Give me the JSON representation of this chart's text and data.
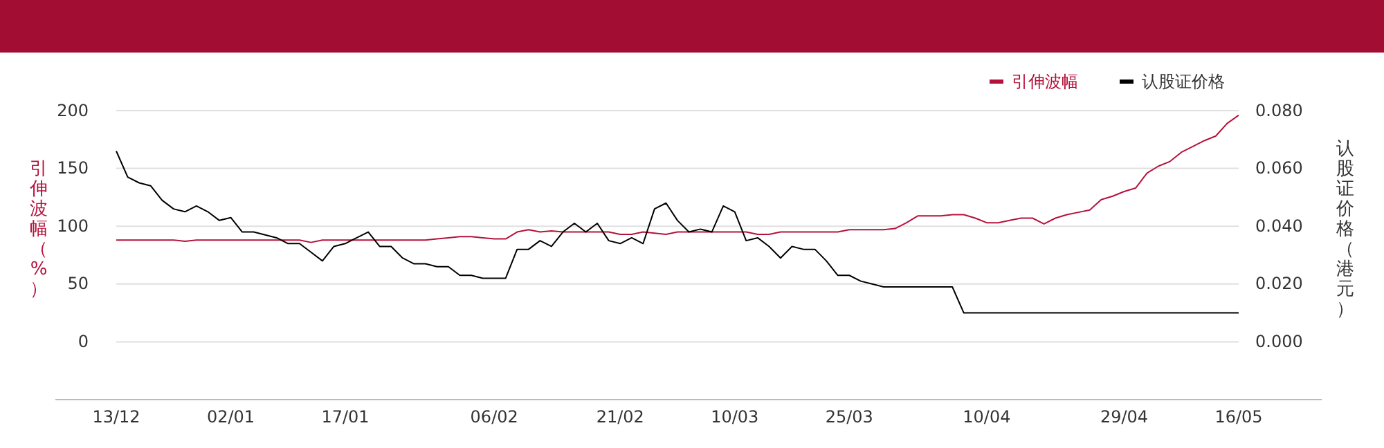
{
  "chart_data": {
    "type": "line",
    "categories": [
      "13/12",
      null,
      null,
      null,
      null,
      null,
      null,
      null,
      null,
      null,
      "02/01",
      null,
      null,
      null,
      null,
      null,
      null,
      null,
      null,
      null,
      "17/01",
      null,
      null,
      null,
      null,
      null,
      null,
      null,
      null,
      null,
      null,
      null,
      null,
      "06/02",
      null,
      null,
      null,
      null,
      null,
      null,
      null,
      null,
      null,
      null,
      "21/02",
      null,
      null,
      null,
      null,
      null,
      null,
      null,
      null,
      null,
      "10/03",
      null,
      null,
      null,
      null,
      null,
      null,
      null,
      null,
      null,
      "25/03",
      null,
      null,
      null,
      null,
      null,
      null,
      null,
      null,
      null,
      null,
      null,
      "10/04",
      null,
      null,
      null,
      null,
      null,
      null,
      null,
      null,
      null,
      null,
      null,
      "29/04",
      null,
      null,
      null,
      null,
      null,
      null,
      null,
      null,
      null,
      "16/05"
    ],
    "ylabel": "引伸波幅（%）",
    "y2label": "认股证价格（港元）",
    "ylim": [
      -50,
      200
    ],
    "yticks": [
      0,
      50,
      100,
      150,
      200
    ],
    "y2lim": [
      -0.02,
      0.08
    ],
    "y2ticks": [
      {
        "value": 0,
        "label": "0.000"
      },
      {
        "value": 0.02,
        "label": "0.020"
      },
      {
        "value": 0.04,
        "label": "0.040"
      },
      {
        "value": 0.06,
        "label": "0.060"
      },
      {
        "value": 0.08,
        "label": "0.080"
      }
    ],
    "grid": "y",
    "legend": "top right",
    "marker": "none",
    "line_style": "solid",
    "series": [
      {
        "name": "引伸波幅",
        "color": "#b5123b",
        "values": [
          88,
          88,
          88,
          88,
          88,
          88,
          87,
          88,
          88,
          88,
          88,
          88,
          88,
          88,
          88,
          88,
          88,
          86,
          88,
          88,
          88,
          88,
          88,
          88,
          88,
          88,
          88,
          88,
          89,
          90,
          91,
          91,
          90,
          89,
          89,
          95,
          97,
          95,
          96,
          95,
          95,
          95,
          95,
          95,
          93,
          93,
          95,
          94,
          93,
          95,
          95,
          95,
          95,
          95,
          95,
          95,
          93,
          93,
          95,
          95,
          95,
          95,
          95,
          95,
          97,
          97,
          97,
          97,
          98,
          103,
          109,
          109,
          109,
          110,
          110,
          107,
          103,
          103,
          105,
          107,
          107,
          102,
          107,
          110,
          112,
          114,
          123,
          126,
          130,
          133,
          146,
          152,
          156,
          164,
          169,
          174,
          178,
          189,
          196
        ]
      },
      {
        "name": "认股证价格",
        "color": "#000000",
        "axis": "y2",
        "values": [
          0.066,
          0.057,
          0.055,
          0.054,
          0.049,
          0.046,
          0.045,
          0.047,
          0.045,
          0.042,
          0.043,
          0.038,
          0.038,
          0.037,
          0.036,
          0.034,
          0.034,
          0.031,
          0.028,
          0.033,
          0.034,
          0.036,
          0.038,
          0.033,
          0.033,
          0.029,
          0.027,
          0.027,
          0.026,
          0.026,
          0.023,
          0.023,
          0.022,
          0.022,
          0.022,
          0.032,
          0.032,
          0.035,
          0.033,
          0.038,
          0.041,
          0.038,
          0.041,
          0.035,
          0.034,
          0.036,
          0.034,
          0.046,
          0.048,
          0.042,
          0.038,
          0.039,
          0.038,
          0.047,
          0.045,
          0.035,
          0.036,
          0.033,
          0.029,
          0.033,
          0.032,
          0.032,
          0.028,
          0.023,
          0.023,
          0.021,
          0.02,
          0.019,
          0.019,
          0.019,
          0.019,
          0.019,
          0.019,
          0.019,
          0.01,
          0.01,
          0.01,
          0.01,
          0.01,
          0.01,
          0.01,
          0.01,
          0.01,
          0.01,
          0.01,
          0.01,
          0.01,
          0.01,
          0.01,
          0.01,
          0.01,
          0.01,
          0.01,
          0.01,
          0.01,
          0.01,
          0.01,
          0.01,
          0.01
        ]
      }
    ]
  }
}
